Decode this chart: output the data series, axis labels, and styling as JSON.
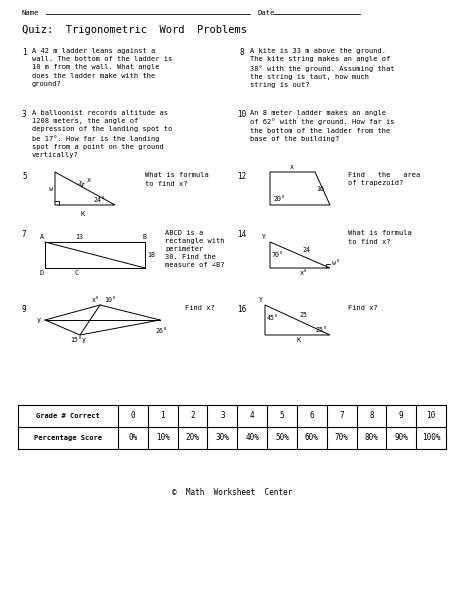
{
  "title": "Quiz:  Trigonometric  Word  Problems",
  "name_label": "Name",
  "date_label": "Date",
  "copyright": "©  Math  Worksheet  Center",
  "bg_color": "#ffffff",
  "p1_num": "1",
  "p1_text": "A 42 m ladder leans against a\nwall. The bottom of the ladder is\n10 m from the wall. What angle\ndoes the ladder make with the\nground?",
  "p8_num": "8",
  "p8_text": "A kite is 33 m above the ground.\nThe kite string makes an angle of\n38° with the ground. Assuming that\nthe string is taut, how much\nstring is out?",
  "p3_num": "3",
  "p3_text": "A balloonist records altitude as\n1208 meters, the angle of\ndepression of the landing spot to\nbe 17°. How far is the landing\nspot from a point on the ground\nvertically?",
  "p10_num": "10",
  "p10_text": "An 8 meter ladder makes an angle\nof 62° with the ground. How far is\nthe bottom of the ladder from the\nbase of the building?",
  "p5_q": "What is formula\nto find x?",
  "p12_q": "Find   the   area\nof trapezoid?",
  "p7_q": "ABCD is a\nrectangle with\nperimeter\n30. Find the\nmeasure of ∠B?",
  "p14_q": "What is formula\nto find x?",
  "p9_q": "Find x?",
  "p16_q": "Find x?",
  "table_headers": [
    "Grade # Correct",
    "0",
    "1",
    "2",
    "3",
    "4",
    "5",
    "6",
    "7",
    "8",
    "9",
    "10"
  ],
  "table_row": [
    "Percentage Score",
    "0%",
    "10%",
    "20%",
    "30%",
    "40%",
    "50%",
    "60%",
    "70%",
    "80%",
    "90%",
    "100%"
  ]
}
